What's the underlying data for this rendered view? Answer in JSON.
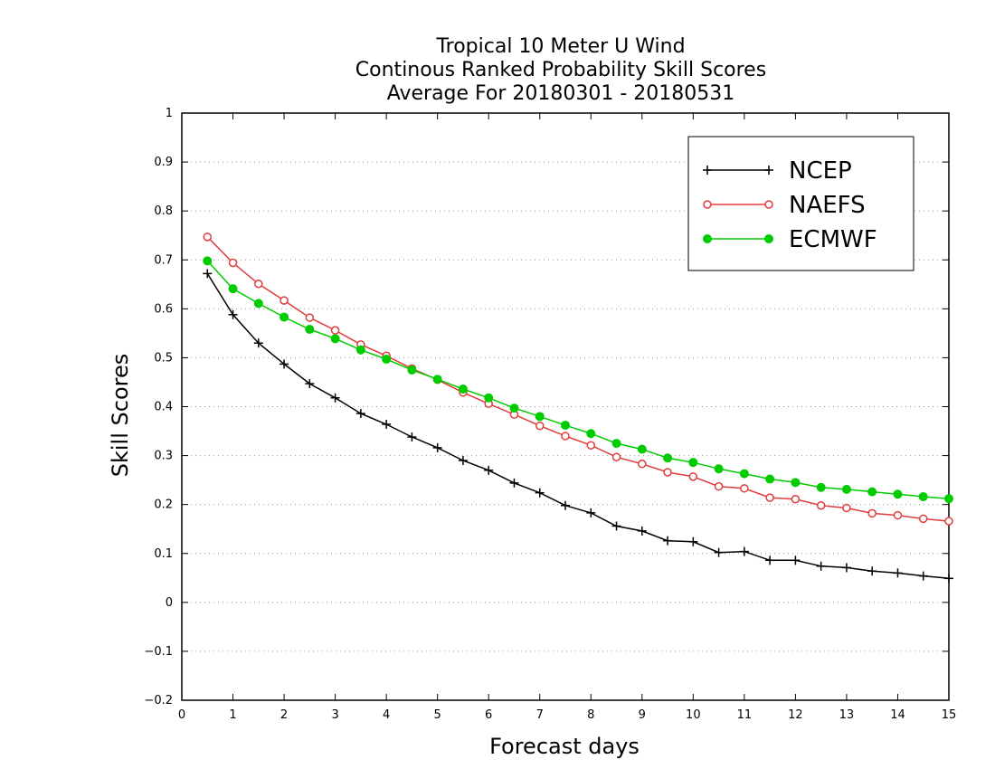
{
  "chart_data": {
    "type": "line",
    "title_lines": [
      "Tropical 10 Meter U Wind",
      "Continous Ranked Probability Skill Scores",
      "Average For 20180301 - 20180531"
    ],
    "xlabel": "Forecast days",
    "ylabel": "Skill Scores",
    "xlim": [
      0,
      15
    ],
    "ylim": [
      -0.2,
      1
    ],
    "x_ticks": [
      "0",
      "1",
      "2",
      "3",
      "4",
      "5",
      "6",
      "7",
      "8",
      "9",
      "10",
      "11",
      "12",
      "13",
      "14",
      "15"
    ],
    "y_ticks": [
      "-0.2",
      "-0.1",
      "0",
      "0.1",
      "0.2",
      "0.3",
      "0.4",
      "0.5",
      "0.6",
      "0.7",
      "0.8",
      "0.9",
      "1"
    ],
    "grid": "horizontal dotted",
    "legend_position": "top-right",
    "x": [
      0.5,
      1,
      1.5,
      2,
      2.5,
      3,
      3.5,
      4,
      4.5,
      5,
      5.5,
      6,
      6.5,
      7,
      7.5,
      8,
      8.5,
      9,
      9.5,
      10,
      10.5,
      11,
      11.5,
      12,
      12.5,
      13,
      13.5,
      14,
      14.5,
      15
    ],
    "series": [
      {
        "name": "NCEP",
        "color": "#000000",
        "marker": "plus",
        "values": [
          0.672,
          0.588,
          0.53,
          0.487,
          0.447,
          0.418,
          0.386,
          0.364,
          0.338,
          0.316,
          0.29,
          0.27,
          0.244,
          0.224,
          0.198,
          0.183,
          0.156,
          0.146,
          0.126,
          0.124,
          0.102,
          0.104,
          0.086,
          0.086,
          0.074,
          0.071,
          0.064,
          0.06,
          0.054,
          0.049
        ]
      },
      {
        "name": "NAEFS",
        "color": "#e03c3c",
        "marker": "open-circle",
        "values": [
          0.747,
          0.694,
          0.651,
          0.617,
          0.582,
          0.556,
          0.527,
          0.504,
          0.478,
          0.455,
          0.429,
          0.406,
          0.384,
          0.361,
          0.34,
          0.321,
          0.297,
          0.283,
          0.266,
          0.257,
          0.237,
          0.233,
          0.214,
          0.211,
          0.198,
          0.193,
          0.182,
          0.178,
          0.171,
          0.166
        ]
      },
      {
        "name": "ECMWF",
        "color": "#00cc00",
        "marker": "filled-circle",
        "values": [
          0.698,
          0.641,
          0.611,
          0.583,
          0.558,
          0.539,
          0.516,
          0.497,
          0.475,
          0.456,
          0.436,
          0.418,
          0.397,
          0.38,
          0.362,
          0.345,
          0.325,
          0.313,
          0.295,
          0.286,
          0.273,
          0.263,
          0.252,
          0.245,
          0.235,
          0.231,
          0.226,
          0.221,
          0.216,
          0.212
        ]
      }
    ]
  }
}
